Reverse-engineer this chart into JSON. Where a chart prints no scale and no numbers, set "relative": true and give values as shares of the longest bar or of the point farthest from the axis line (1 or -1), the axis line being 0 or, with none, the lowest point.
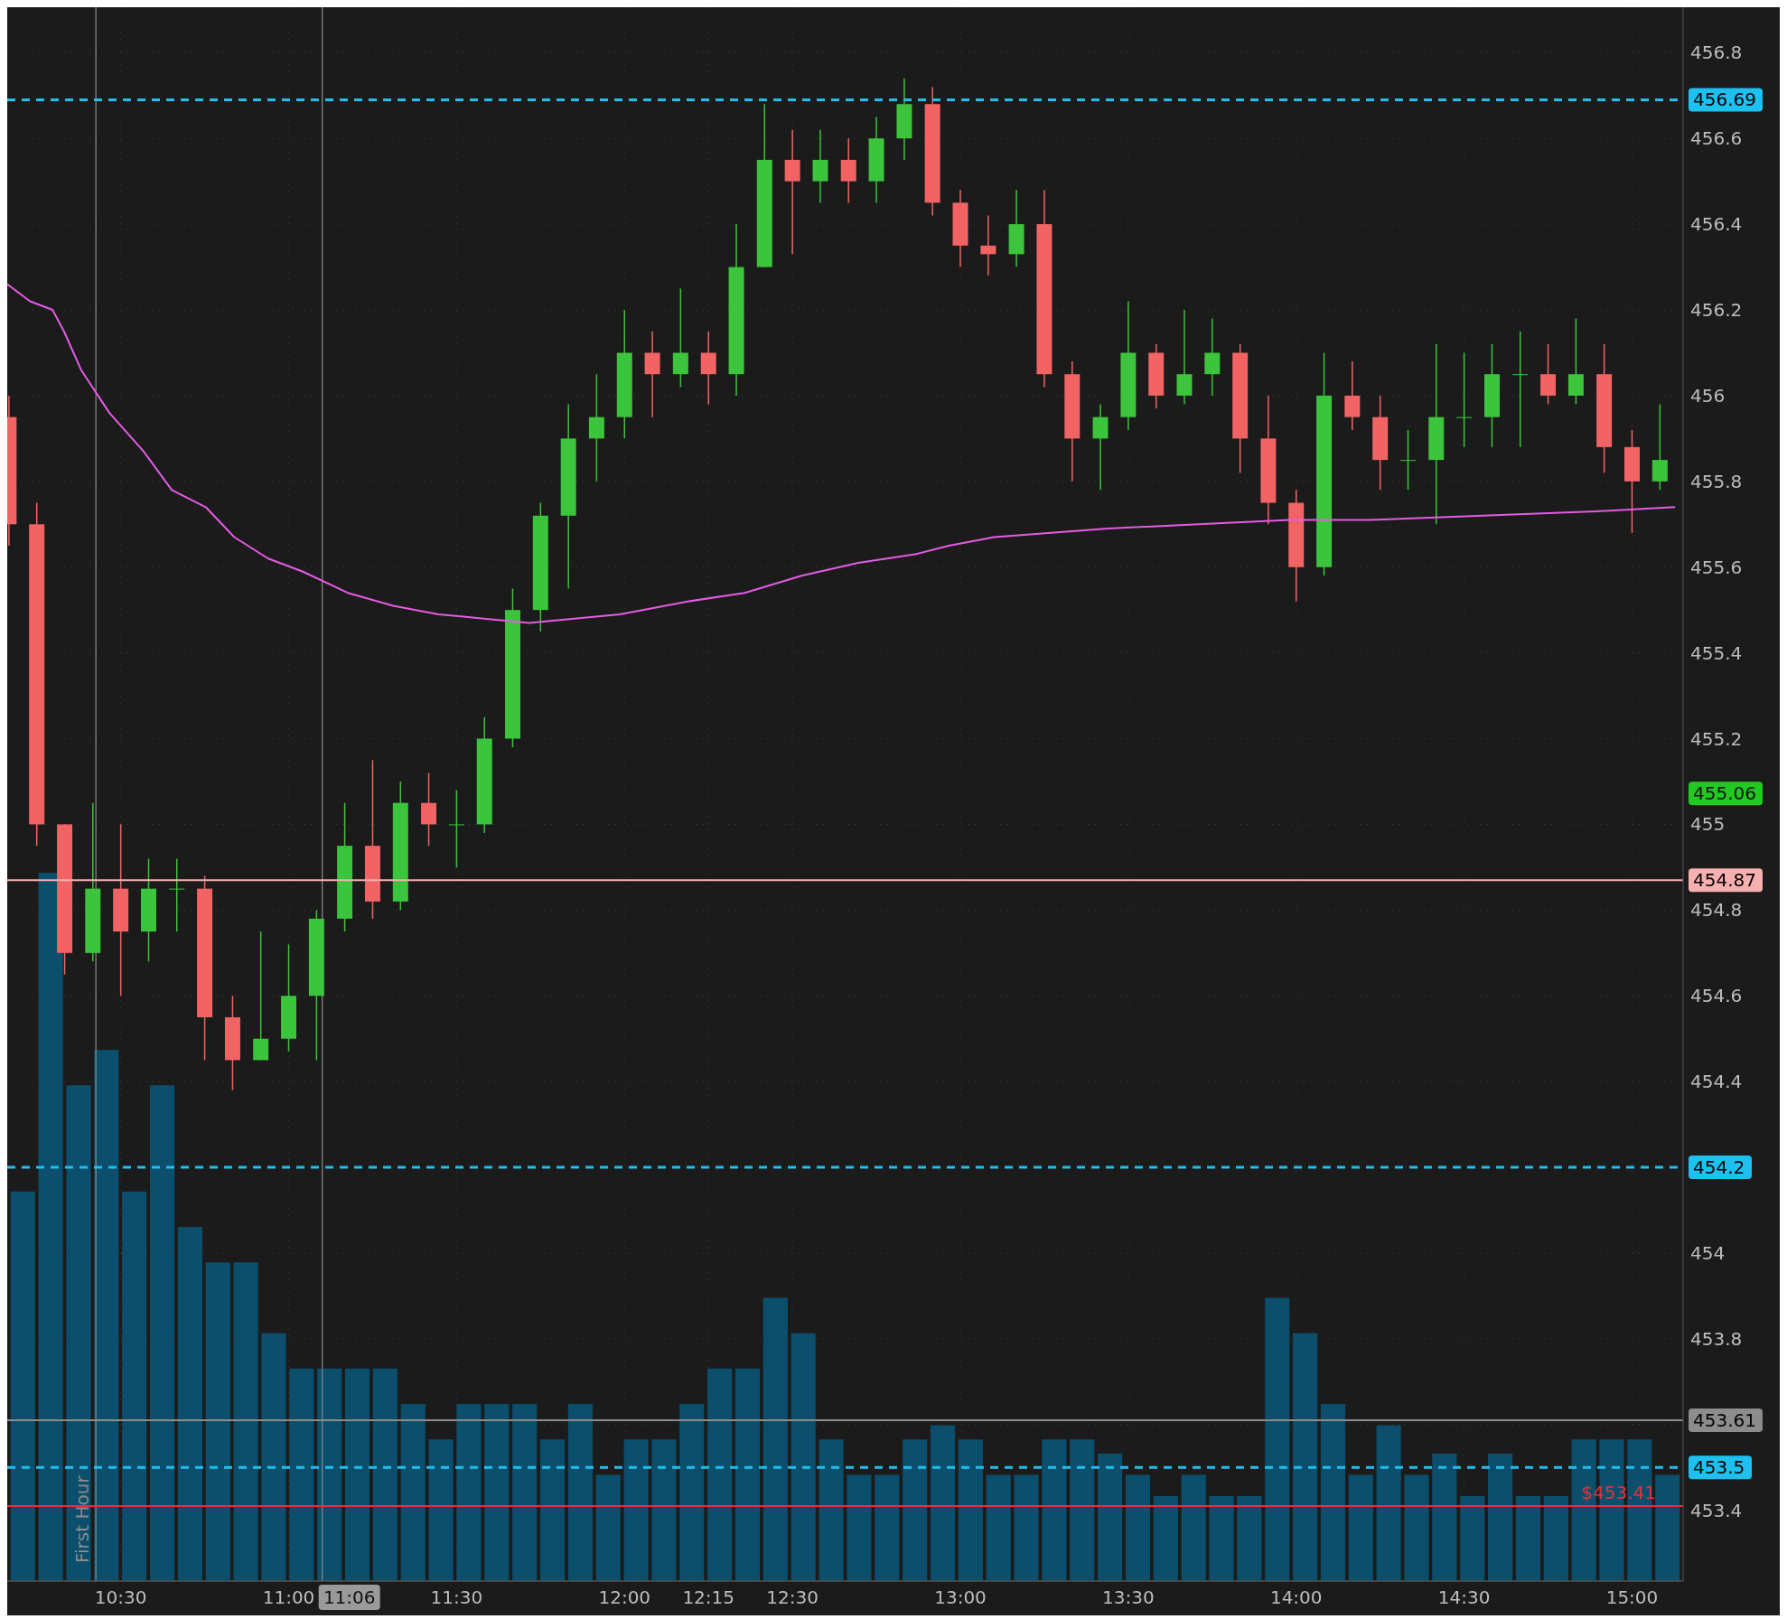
{
  "chart_data": [
    {
      "type": "candlestick",
      "xlim": [
        10.162,
        15.152
      ],
      "ylim": [
        453.235,
        456.906
      ],
      "xticks": [
        {
          "value": 10.5,
          "label": "10:30"
        },
        {
          "value": 11,
          "label": "11:00"
        },
        {
          "value": 11.5,
          "label": "11:30"
        },
        {
          "value": 12,
          "label": "12:00"
        },
        {
          "value": 12.25,
          "label": "12:15"
        },
        {
          "value": 12.5,
          "label": "12:30"
        },
        {
          "value": 13,
          "label": "13:00"
        },
        {
          "value": 13.5,
          "label": "13:30"
        },
        {
          "value": 14,
          "label": "14:00"
        },
        {
          "value": 14.5,
          "label": "14:30"
        },
        {
          "value": 15,
          "label": "15:00"
        }
      ],
      "yticks": [
        453.4,
        {
          "value": 453.6,
          "label": null
        },
        453.8,
        454,
        {
          "value": 454.2,
          "label": null
        },
        454.4,
        454.6,
        454.8,
        455,
        455.2,
        455.4,
        455.6,
        455.8,
        456,
        456.2,
        456.4,
        456.6,
        456.8
      ],
      "grid": true,
      "x": [
        10.167,
        10.25,
        10.333,
        10.417,
        10.5,
        10.583,
        10.667,
        10.75,
        10.833,
        10.917,
        11,
        11.083,
        11.167,
        11.25,
        11.333,
        11.417,
        11.5,
        11.583,
        11.667,
        11.75,
        11.833,
        11.917,
        12,
        12.083,
        12.167,
        12.25,
        12.333,
        12.417,
        12.5,
        12.583,
        12.667,
        12.75,
        12.833,
        12.917,
        13,
        13.083,
        13.167,
        13.25,
        13.333,
        13.417,
        13.5,
        13.583,
        13.667,
        13.75,
        13.833,
        13.917,
        14,
        14.083,
        14.167,
        14.25,
        14.333,
        14.417,
        14.5,
        14.583,
        14.667,
        14.75,
        14.833,
        14.917,
        15,
        15.083
      ],
      "ohlc": [
        [
          455.95,
          456.0,
          455.65,
          455.7
        ],
        [
          455.7,
          455.75,
          454.95,
          455.0
        ],
        [
          455.0,
          455.0,
          454.65,
          454.7
        ],
        [
          454.7,
          455.05,
          454.68,
          454.85
        ],
        [
          454.85,
          455.0,
          454.6,
          454.75
        ],
        [
          454.75,
          454.92,
          454.68,
          454.85
        ],
        [
          454.85,
          454.92,
          454.75,
          454.85
        ],
        [
          454.85,
          454.88,
          454.45,
          454.55
        ],
        [
          454.55,
          454.6,
          454.38,
          454.45
        ],
        [
          454.45,
          454.75,
          454.45,
          454.5
        ],
        [
          454.5,
          454.72,
          454.47,
          454.6
        ],
        [
          454.6,
          454.8,
          454.45,
          454.78
        ],
        [
          454.78,
          455.05,
          454.75,
          454.95
        ],
        [
          454.95,
          455.15,
          454.78,
          454.82
        ],
        [
          454.82,
          455.1,
          454.8,
          455.05
        ],
        [
          455.05,
          455.12,
          454.95,
          455.0
        ],
        [
          455.0,
          455.08,
          454.9,
          455.0
        ],
        [
          455.0,
          455.25,
          454.98,
          455.2
        ],
        [
          455.2,
          455.55,
          455.18,
          455.5
        ],
        [
          455.5,
          455.75,
          455.45,
          455.72
        ],
        [
          455.72,
          455.98,
          455.55,
          455.9
        ],
        [
          455.9,
          456.05,
          455.8,
          455.95
        ],
        [
          455.95,
          456.2,
          455.9,
          456.1
        ],
        [
          456.1,
          456.15,
          455.95,
          456.05
        ],
        [
          456.05,
          456.25,
          456.02,
          456.1
        ],
        [
          456.1,
          456.15,
          455.98,
          456.05
        ],
        [
          456.05,
          456.4,
          456.0,
          456.3
        ],
        [
          456.3,
          456.68,
          456.3,
          456.55
        ],
        [
          456.55,
          456.62,
          456.33,
          456.5
        ],
        [
          456.5,
          456.62,
          456.45,
          456.55
        ],
        [
          456.55,
          456.6,
          456.45,
          456.5
        ],
        [
          456.5,
          456.65,
          456.45,
          456.6
        ],
        [
          456.6,
          456.74,
          456.55,
          456.68
        ],
        [
          456.68,
          456.72,
          456.42,
          456.45
        ],
        [
          456.45,
          456.48,
          456.3,
          456.35
        ],
        [
          456.35,
          456.42,
          456.28,
          456.33
        ],
        [
          456.33,
          456.48,
          456.3,
          456.4
        ],
        [
          456.4,
          456.48,
          456.02,
          456.05
        ],
        [
          456.05,
          456.08,
          455.8,
          455.9
        ],
        [
          455.9,
          455.98,
          455.78,
          455.95
        ],
        [
          455.95,
          456.22,
          455.92,
          456.1
        ],
        [
          456.1,
          456.12,
          455.97,
          456.0
        ],
        [
          456.0,
          456.2,
          455.98,
          456.05
        ],
        [
          456.05,
          456.18,
          456.0,
          456.1
        ],
        [
          456.1,
          456.12,
          455.82,
          455.9
        ],
        [
          455.9,
          456.0,
          455.7,
          455.75
        ],
        [
          455.75,
          455.78,
          455.52,
          455.6
        ],
        [
          455.6,
          456.1,
          455.58,
          456.0
        ],
        [
          456.0,
          456.08,
          455.92,
          455.95
        ],
        [
          455.95,
          456.0,
          455.78,
          455.85
        ],
        [
          455.85,
          455.92,
          455.78,
          455.85
        ],
        [
          455.85,
          456.12,
          455.7,
          455.95
        ],
        [
          455.95,
          456.1,
          455.88,
          455.95
        ],
        [
          455.95,
          456.12,
          455.88,
          456.05
        ],
        [
          456.05,
          456.15,
          455.88,
          456.05
        ],
        [
          456.05,
          456.12,
          455.98,
          456.0
        ],
        [
          456.0,
          456.18,
          455.98,
          456.05
        ],
        [
          456.05,
          456.12,
          455.82,
          455.88
        ],
        [
          455.88,
          455.92,
          455.68,
          455.8
        ],
        [
          455.8,
          455.98,
          455.78,
          455.85
        ]
      ],
      "series": [
        {
          "type": "line",
          "color": "#e55be5",
          "x": [
            10.162,
            10.23,
            10.297,
            10.331,
            10.382,
            10.466,
            10.568,
            10.652,
            10.753,
            10.838,
            10.939,
            11.041,
            11.176,
            11.311,
            11.446,
            11.581,
            11.716,
            11.851,
            11.986,
            12.189,
            12.358,
            12.527,
            12.696,
            12.865,
            12.966,
            13.101,
            13.27,
            13.439,
            13.709,
            13.98,
            14.216,
            14.554,
            14.892,
            15.128
          ],
          "values": [
            456.26,
            456.22,
            456.2,
            456.15,
            456.06,
            455.96,
            455.87,
            455.78,
            455.74,
            455.67,
            455.62,
            455.59,
            455.54,
            455.51,
            455.49,
            455.48,
            455.47,
            455.48,
            455.49,
            455.52,
            455.54,
            455.58,
            455.61,
            455.63,
            455.65,
            455.67,
            455.68,
            455.69,
            455.7,
            455.71,
            455.71,
            455.72,
            455.73,
            455.74
          ]
        }
      ],
      "ref_lines": [
        {
          "axis": "y",
          "value": 456.69,
          "label": "456.69",
          "color": "#1ec0f0",
          "line_style": "dashed"
        },
        {
          "axis": "y",
          "value": 454.2,
          "label": "454.2",
          "color": "#1ec0f0",
          "line_style": "dashed"
        },
        {
          "axis": "y",
          "value": 453.5,
          "label": "453.5",
          "color": "#1ec0f0",
          "line_style": "dashed"
        },
        {
          "axis": "y",
          "value": 454.87,
          "label": "454.87",
          "color": "#f7b0b0",
          "line_style": "solid"
        },
        {
          "axis": "y",
          "value": 453.61,
          "label": "453.61",
          "color": "#8c8c8c",
          "line_style": "solid"
        },
        {
          "axis": "y",
          "value": 453.41,
          "label": "$453.41",
          "color": "#e8303a",
          "line_style": "solid"
        },
        {
          "axis": "x",
          "value": 10.426,
          "label": "First Hour",
          "color": "#8c8c8c",
          "line_style": "solid"
        },
        {
          "axis": "x",
          "value": 11.1,
          "label": "11:06",
          "color": "#8c8c8c",
          "line_style": "solid"
        }
      ],
      "annotations": [
        "455.06"
      ]
    },
    {
      "type": "bar",
      "relative": true,
      "color": "#0b4f6c",
      "categories": [
        null,
        null,
        null,
        null,
        null,
        null,
        null,
        null,
        null,
        null,
        null,
        null,
        null,
        null,
        null,
        null,
        null,
        null,
        null,
        null,
        null,
        null,
        null,
        null,
        null,
        null,
        null,
        null,
        null,
        null,
        null,
        null,
        null,
        null,
        null,
        null,
        null,
        null,
        null,
        null,
        null,
        null,
        null,
        null,
        null,
        null,
        null,
        null,
        null,
        null,
        null,
        null,
        null,
        null,
        null,
        null,
        null,
        null,
        null,
        null
      ],
      "values": [
        0.55,
        1,
        0.7,
        0.75,
        0.55,
        0.7,
        0.5,
        0.45,
        0.45,
        0.35,
        0.3,
        0.3,
        0.3,
        0.3,
        0.25,
        0.2,
        0.25,
        0.25,
        0.25,
        0.2,
        0.25,
        0.15,
        0.2,
        0.2,
        0.25,
        0.3,
        0.3,
        0.4,
        0.35,
        0.2,
        0.15,
        0.15,
        0.2,
        0.22,
        0.2,
        0.15,
        0.15,
        0.2,
        0.2,
        0.18,
        0.15,
        0.12,
        0.15,
        0.12,
        0.12,
        0.4,
        0.35,
        0.25,
        0.15,
        0.22,
        0.15,
        0.18,
        0.12,
        0.18,
        0.12,
        0.12,
        0.2,
        0.2,
        0.2,
        0.15
      ]
    }
  ]
}
